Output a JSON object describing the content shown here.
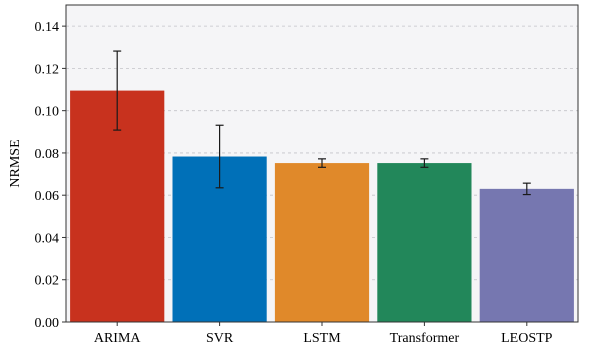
{
  "chart_data": {
    "type": "bar",
    "categories": [
      "ARIMA",
      "SVR",
      "LSTM",
      "Transformer",
      "LEOSTP"
    ],
    "values": [
      0.1095,
      0.0783,
      0.0752,
      0.0752,
      0.063
    ],
    "error": [
      0.0187,
      0.0148,
      0.002,
      0.002,
      0.0027
    ],
    "colors": [
      "#c8321e",
      "#0070b8",
      "#e0892a",
      "#22875a",
      "#7677b0"
    ],
    "ylabel": "NRMSE",
    "ylim": [
      0,
      0.15
    ],
    "yticks": [
      "0.00",
      "0.02",
      "0.04",
      "0.06",
      "0.08",
      "0.10",
      "0.12",
      "0.14"
    ],
    "grid": "horizontal-dashed",
    "background": "#f5f5f7"
  }
}
